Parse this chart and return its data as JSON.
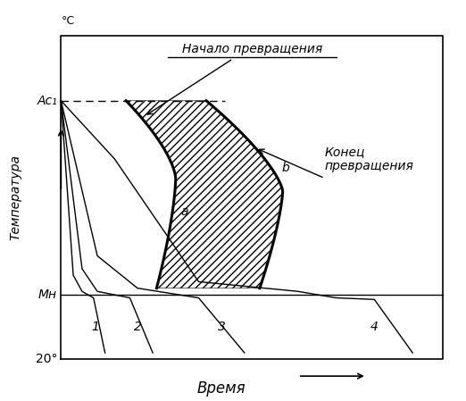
{
  "ylabel": "Температура",
  "xlabel": "Время",
  "ylabel_unit": "°C",
  "Ac1_label": "Ac₁",
  "MH_label": "Mн",
  "temp_20_label": "20°",
  "annotation_start": "Начало превращения",
  "annotation_end": "Конец\nпревращения",
  "label_a": "a",
  "label_b": "b",
  "curve_labels": [
    "1",
    "2",
    "3",
    "4"
  ],
  "Ac1": 0.8,
  "MH": 0.2,
  "background_color": "#ffffff"
}
